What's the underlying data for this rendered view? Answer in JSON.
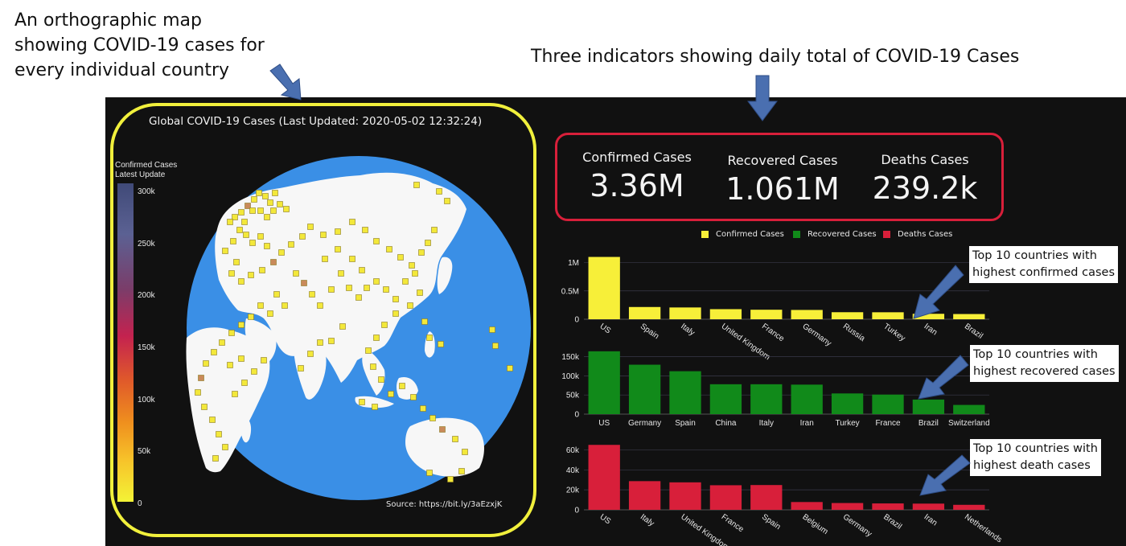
{
  "annotations": {
    "map_note": "An orthographic map showing COVID-19 cases for every individual country",
    "indicators_note": "Three indicators showing daily total of COVID-19 Cases",
    "confirmed_note": [
      "Top 10 countries with",
      "highest confirmed cases"
    ],
    "recovered_note": [
      "Top 10 countries with",
      "highest recovered cases"
    ],
    "deaths_note": [
      "Top 10 countries with",
      "highest death cases"
    ]
  },
  "map": {
    "title": "Global COVID-19 Cases (Last Updated: 2020-05-02 12:32:24)",
    "colorbar_title": "Confirmed Cases Latest Update",
    "colorbar_ticks": [
      "300k",
      "250k",
      "200k",
      "150k",
      "100k",
      "50k",
      "0"
    ],
    "source": "Source: https://bit.ly/3aEzxjK",
    "ocean_color": "#3a8fe6",
    "land_color": "#f7f7f7",
    "marker_color": "#f3e83a"
  },
  "indicators": [
    {
      "title": "Confirmed Cases",
      "value": "3.36M"
    },
    {
      "title": "Recovered Cases",
      "value": "1.061M"
    },
    {
      "title": "Deaths Cases",
      "value": "239.2k"
    }
  ],
  "legend": [
    {
      "label": "Confirmed Cases",
      "color": "#f7ef39"
    },
    {
      "label": "Recovered Cases",
      "color": "#118a1a"
    },
    {
      "label": "Deaths Cases",
      "color": "#d81f3a"
    }
  ],
  "chart_data": [
    {
      "type": "bar",
      "name": "Confirmed Cases",
      "color": "#f7ef39",
      "categories": [
        "US",
        "Spain",
        "Italy",
        "United Kingdom",
        "France",
        "Germany",
        "Russia",
        "Turkey",
        "Iran",
        "Brazil"
      ],
      "values": [
        1100000,
        216000,
        208000,
        178000,
        168000,
        164000,
        124000,
        123000,
        96000,
        92000
      ],
      "yticks": [
        0,
        500000,
        1000000
      ],
      "ytick_labels": [
        "0",
        "0.5M",
        "1M"
      ],
      "ylim": [
        0,
        1150000
      ],
      "rotated_labels": true
    },
    {
      "type": "bar",
      "name": "Recovered Cases",
      "color": "#118a1a",
      "categories": [
        "US",
        "Germany",
        "Spain",
        "China",
        "Italy",
        "Iran",
        "Turkey",
        "France",
        "Brazil",
        "Switzerland"
      ],
      "values": [
        164000,
        129000,
        112000,
        78000,
        78000,
        77000,
        54000,
        51000,
        38000,
        24000
      ],
      "yticks": [
        0,
        50000,
        100000,
        150000
      ],
      "ytick_labels": [
        "0",
        "50k",
        "100k",
        "150k"
      ],
      "ylim": [
        0,
        170000
      ],
      "rotated_labels": false
    },
    {
      "type": "bar",
      "name": "Deaths Cases",
      "color": "#d81f3a",
      "categories": [
        "US",
        "Italy",
        "United Kingdom",
        "France",
        "Spain",
        "Belgium",
        "Germany",
        "Brazil",
        "Iran",
        "Netherlands"
      ],
      "values": [
        65000,
        28700,
        27500,
        24600,
        24800,
        7800,
        6800,
        6400,
        6200,
        5000
      ],
      "yticks": [
        0,
        20000,
        40000,
        60000
      ],
      "ytick_labels": [
        "0",
        "20k",
        "40k",
        "60k"
      ],
      "ylim": [
        0,
        66000
      ],
      "rotated_labels": true
    }
  ]
}
